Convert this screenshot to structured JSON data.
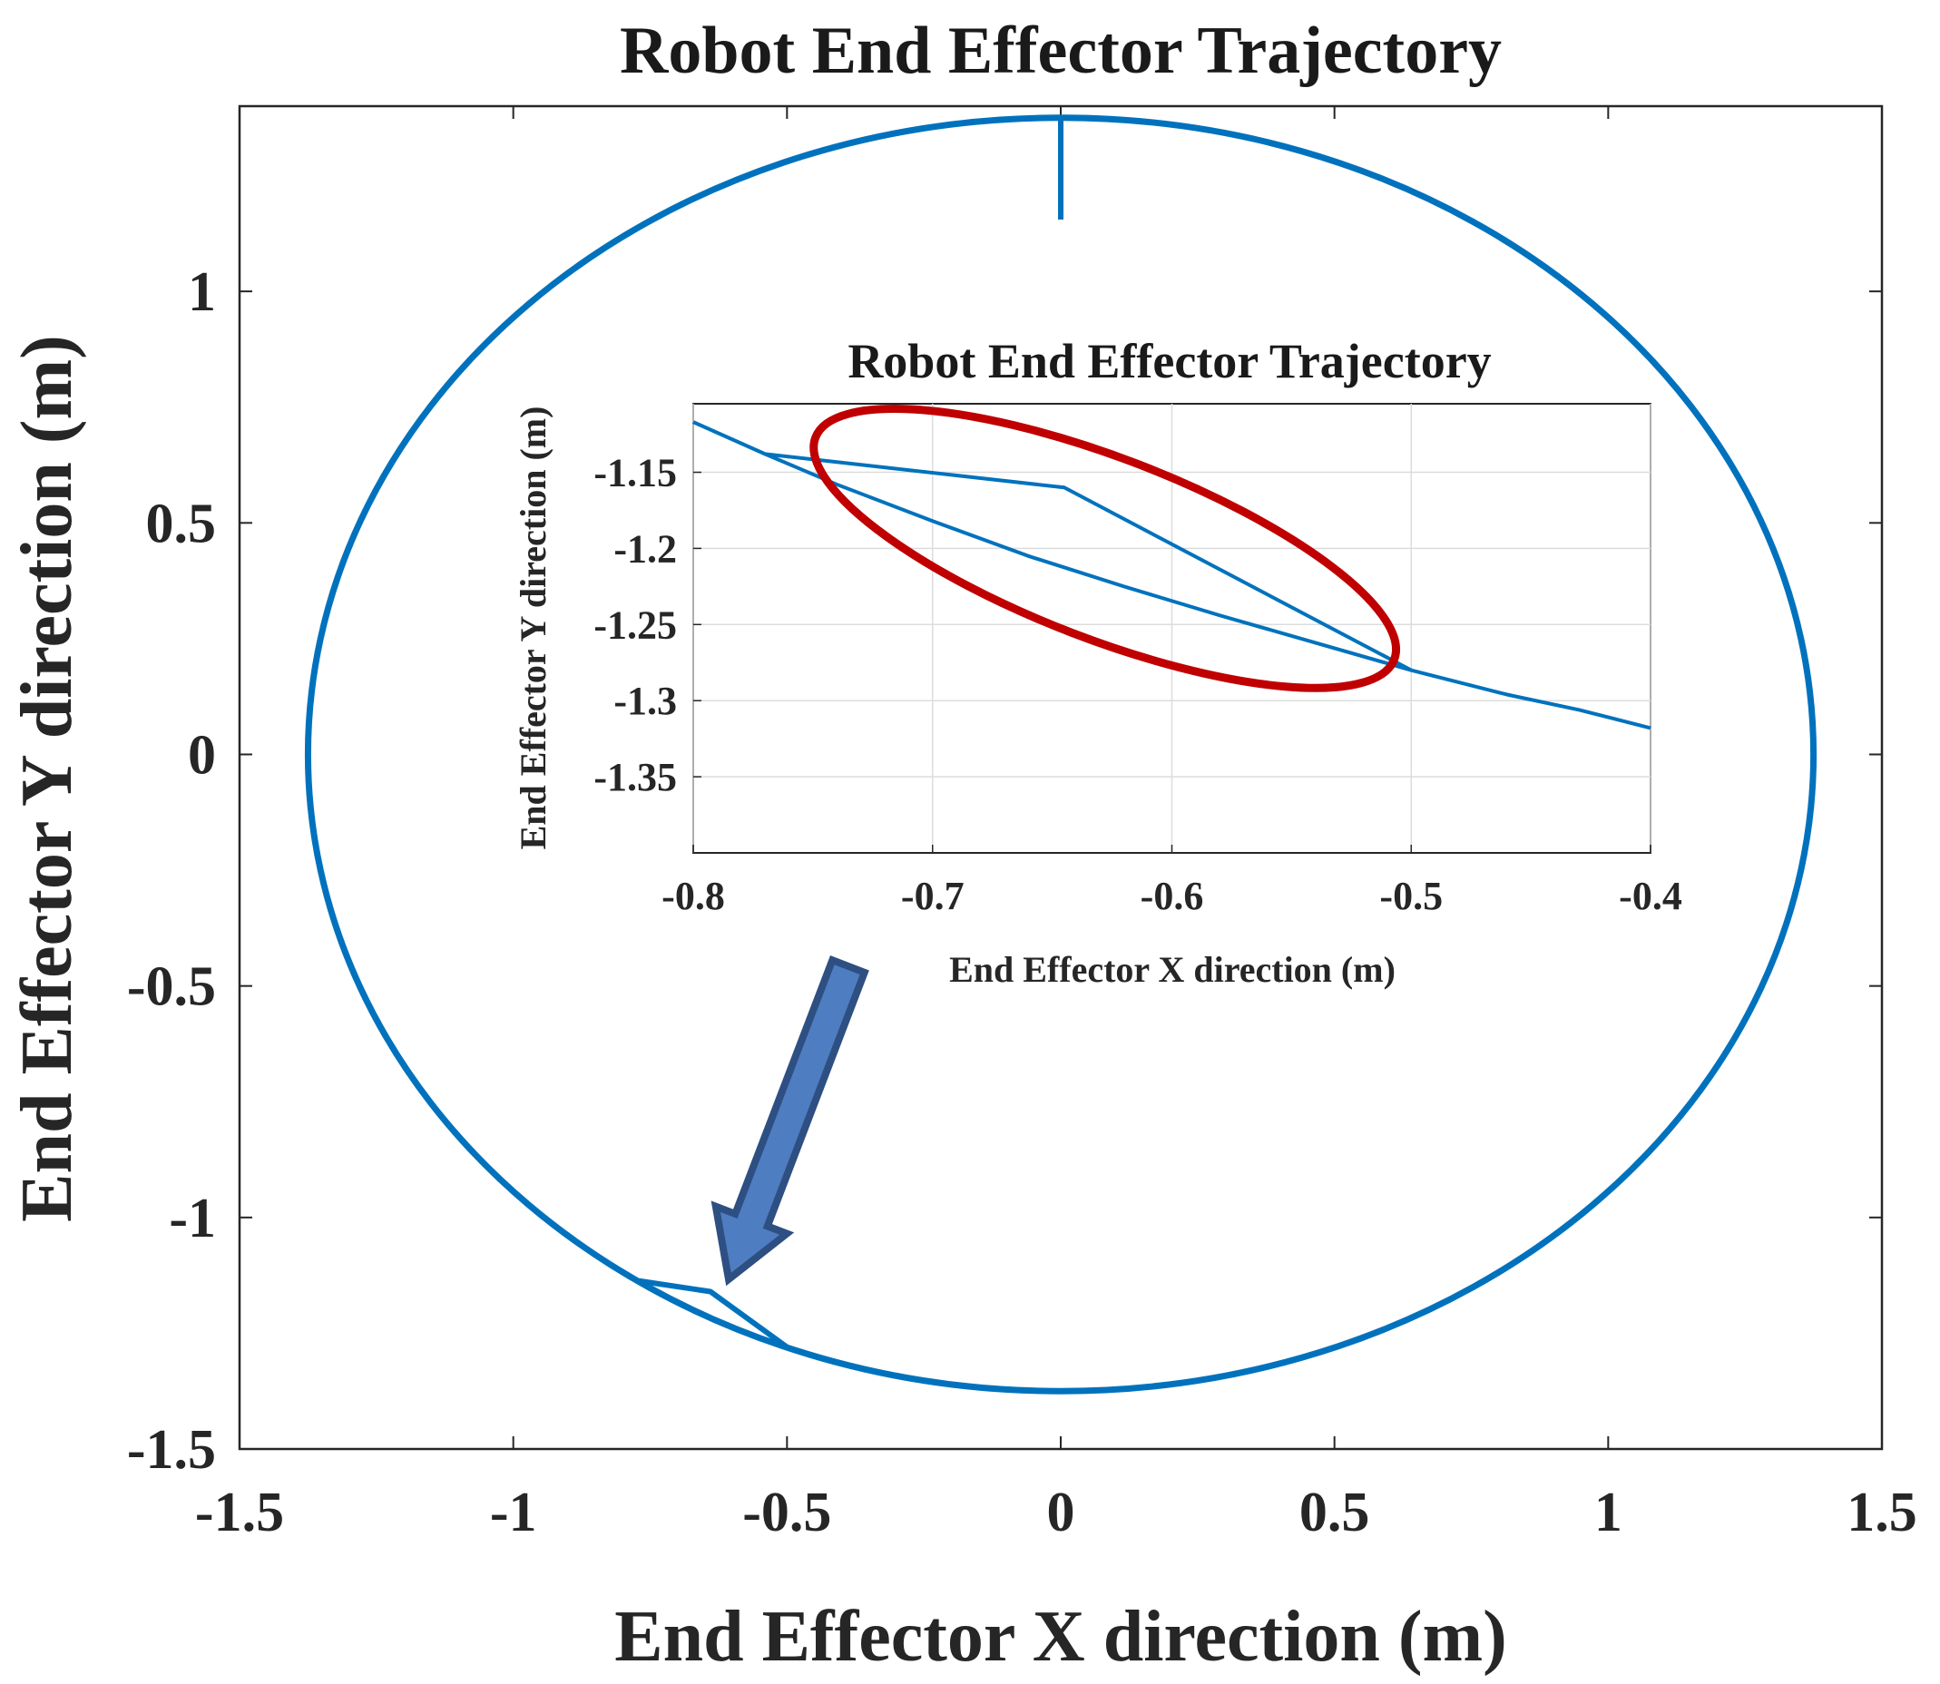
{
  "chart_data": [
    {
      "type": "line",
      "title": "Robot End Effector Trajectory",
      "xlabel": "End Effector X direction (m)",
      "ylabel": "End Effector Y direction (m)",
      "xlim": [
        -1.5,
        1.5
      ],
      "ylim": [
        -1.5,
        1.4
      ],
      "xticks": [
        -1.5,
        -1,
        -0.5,
        0,
        0.5,
        1,
        1.5
      ],
      "xtick_labels": [
        "-1.5",
        "-1",
        "-0.5",
        "0",
        "0.5",
        "1",
        "1.5"
      ],
      "yticks": [
        -1.5,
        -1,
        -0.5,
        0,
        0.5,
        1
      ],
      "ytick_labels": [
        "-1.5",
        "-1",
        "-0.5",
        "0",
        "0.5",
        "1"
      ],
      "grid": false,
      "series": [
        {
          "color": "#0072BD",
          "shape": "circle",
          "center": [
            0,
            0
          ],
          "radius": 1.375,
          "x": [
            0,
            -1.375,
            0,
            1.375,
            0
          ],
          "y": [
            1.375,
            0,
            -1.375,
            0,
            1.375
          ]
        },
        {
          "color": "#0072BD",
          "x": [
            0,
            0
          ],
          "y": [
            1.375,
            1.155
          ]
        },
        {
          "color": "#0072BD",
          "x": [
            -0.77,
            -0.64,
            -0.5
          ],
          "y": [
            -1.137,
            -1.16,
            -1.28
          ]
        }
      ]
    },
    {
      "type": "line",
      "title": "Robot End Effector Trajectory",
      "xlabel": "End Effector X direction (m)",
      "ylabel": "End Effector Y direction (m)",
      "xlim": [
        -0.8,
        -0.4
      ],
      "ylim": [
        -1.4,
        -1.105
      ],
      "xticks": [
        -0.8,
        -0.7,
        -0.6,
        -0.5,
        -0.4
      ],
      "xtick_labels": [
        "-0.8",
        "-0.7",
        "-0.6",
        "-0.5",
        "-0.4"
      ],
      "yticks": [
        -1.35,
        -1.3,
        -1.25,
        -1.2,
        -1.15
      ],
      "ytick_labels": [
        "-1.35",
        "-1.3",
        "-1.25",
        "-1.2",
        "-1.15"
      ],
      "grid": true,
      "series": [
        {
          "color": "#0072BD",
          "x": [
            -0.8,
            -0.77,
            -0.74,
            -0.7,
            -0.66,
            -0.62,
            -0.58,
            -0.54,
            -0.5,
            -0.46,
            -0.43,
            -0.4
          ],
          "y": [
            -1.117,
            -1.138,
            -1.158,
            -1.182,
            -1.205,
            -1.225,
            -1.244,
            -1.262,
            -1.28,
            -1.296,
            -1.306,
            -1.318
          ]
        },
        {
          "color": "#0072BD",
          "x": [
            -0.77,
            -0.645,
            -0.5
          ],
          "y": [
            -1.138,
            -1.16,
            -1.28
          ]
        }
      ],
      "annotations": [
        {
          "shape": "ellipse",
          "color": "#C00000",
          "center": [
            -0.628,
            -1.2
          ],
          "semi_axes": [
            0.1295,
            0.0595
          ],
          "rotation_deg": 21
        }
      ]
    }
  ],
  "colors": {
    "series": "#0072BD",
    "highlight_ellipse": "#C00000",
    "arrow_fill": "#4f7dc1",
    "arrow_outline": "#2e4f82"
  }
}
